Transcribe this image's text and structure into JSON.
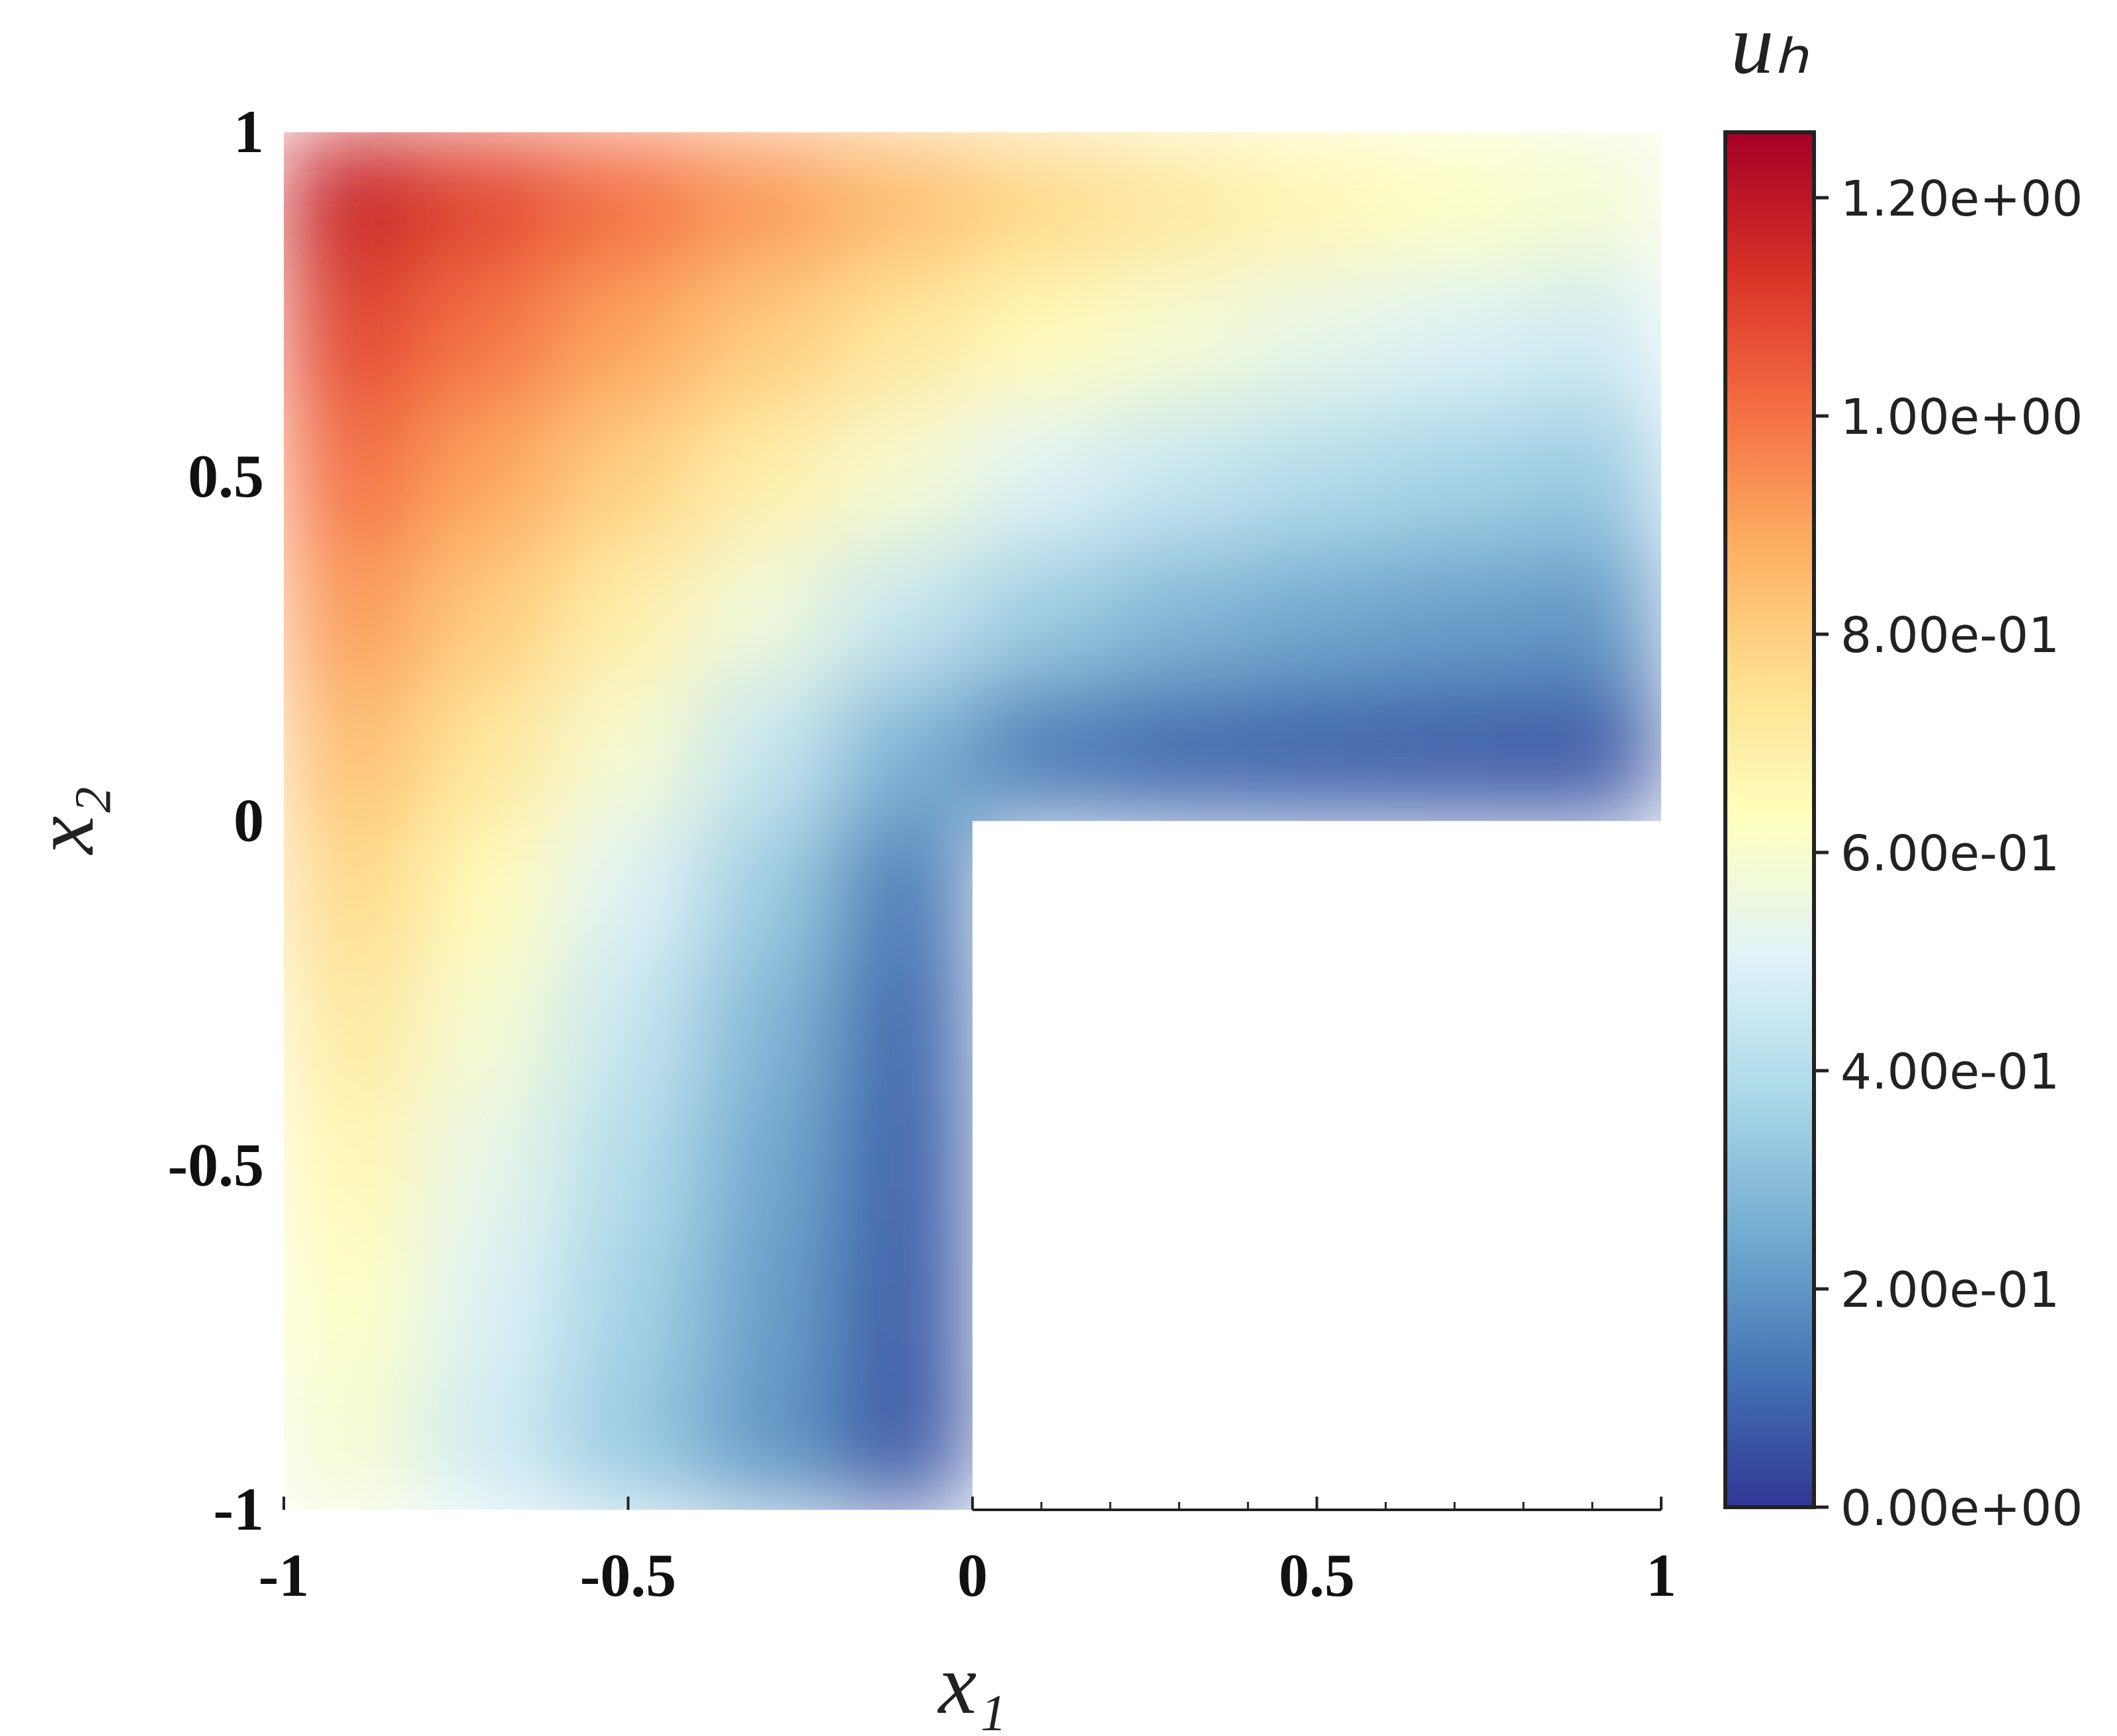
{
  "chart_data": {
    "type": "heatmap",
    "xlabel": "x₁",
    "ylabel": "x₂",
    "colorbar_label": "uₕ",
    "xlim": [
      -1,
      1
    ],
    "ylim": [
      -1,
      1
    ],
    "xticks": [
      -1,
      -0.5,
      0,
      0.5,
      1
    ],
    "yticks": [
      -1,
      -0.5,
      0,
      0.5,
      1
    ],
    "xminorticks": [
      0.1,
      0.2,
      0.3,
      0.4,
      0.6,
      0.7,
      0.8,
      0.9
    ],
    "x": [
      -0.9,
      -0.7,
      -0.5,
      -0.3,
      -0.1,
      0.1,
      0.3,
      0.5,
      0.7,
      0.9
    ],
    "y": [
      0.9,
      0.7,
      0.5,
      0.3,
      0.1,
      -0.1,
      -0.3,
      -0.5,
      -0.7,
      -0.9
    ],
    "z": [
      [
        1.174,
        1.088,
        1.003,
        0.92,
        0.842,
        0.774,
        0.714,
        0.664,
        0.621,
        0.587
      ],
      [
        1.088,
        0.993,
        0.9,
        0.807,
        0.722,
        0.647,
        0.585,
        0.536,
        0.497,
        0.466
      ],
      [
        1.003,
        0.9,
        0.794,
        0.689,
        0.59,
        0.506,
        0.443,
        0.397,
        0.364,
        0.339
      ],
      [
        0.92,
        0.807,
        0.689,
        0.565,
        0.442,
        0.343,
        0.283,
        0.246,
        0.223,
        0.206
      ],
      [
        0.842,
        0.722,
        0.59,
        0.442,
        0.271,
        0.136,
        0.099,
        0.084,
        0.075,
        0.068
      ],
      [
        0.774,
        0.647,
        0.506,
        0.343,
        0.136,
        null,
        null,
        null,
        null,
        null
      ],
      [
        0.714,
        0.585,
        0.443,
        0.283,
        0.099,
        null,
        null,
        null,
        null,
        null
      ],
      [
        0.664,
        0.536,
        0.397,
        0.246,
        0.084,
        null,
        null,
        null,
        null,
        null
      ],
      [
        0.621,
        0.497,
        0.364,
        0.223,
        0.075,
        null,
        null,
        null,
        null,
        null
      ],
      [
        0.587,
        0.466,
        0.339,
        0.206,
        0.068,
        null,
        null,
        null,
        null,
        null
      ]
    ],
    "clim": [
      0,
      1.26
    ],
    "cticks": [
      {
        "value": 0,
        "label": "0.00e+00"
      },
      {
        "value": 0.2,
        "label": "2.00e-01"
      },
      {
        "value": 0.4,
        "label": "4.00e-01"
      },
      {
        "value": 0.6,
        "label": "6.00e-01"
      },
      {
        "value": 0.8,
        "label": "8.00e-01"
      },
      {
        "value": 1.0,
        "label": "1.00e+00"
      },
      {
        "value": 1.2,
        "label": "1.20e+00"
      }
    ],
    "colormap": [
      "#313695",
      "#4575b4",
      "#74add1",
      "#abd9e9",
      "#e0f3f8",
      "#ffffbf",
      "#fee090",
      "#fdae61",
      "#f46d43",
      "#d73027",
      "#a50026"
    ]
  }
}
